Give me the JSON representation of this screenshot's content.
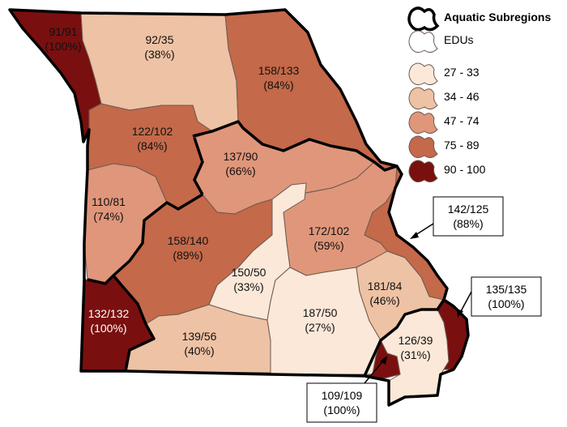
{
  "colors": {
    "class_27_33": "#fbe8d8",
    "class_34_46": "#eec2a4",
    "class_47_74": "#e0967a",
    "class_75_89": "#c4694a",
    "class_90_100": "#7a0f0f",
    "edu_border": "#6b5a52",
    "subregion_border": "#000000"
  },
  "legend": {
    "subregions_label": "Aquatic Subregions",
    "edus_label": "EDUs",
    "classes": [
      {
        "label": "27 - 33",
        "color": "#fbe8d8"
      },
      {
        "label": "34 - 46",
        "color": "#eec2a4"
      },
      {
        "label": "47 - 74",
        "color": "#e0967a"
      },
      {
        "label": "75 - 89",
        "color": "#c4694a"
      },
      {
        "label": "90 - 100",
        "color": "#7a0f0f"
      }
    ]
  },
  "regions": [
    {
      "id": "nw-corner",
      "ratio": "91/91",
      "percent": "(100%)",
      "color": "#7a0f0f"
    },
    {
      "id": "north-central",
      "ratio": "92/35",
      "percent": "(38%)",
      "color": "#eec2a4"
    },
    {
      "id": "northeast",
      "ratio": "158/133",
      "percent": "(84%)",
      "color": "#c4694a"
    },
    {
      "id": "grand-river",
      "ratio": "122/102",
      "percent": "(84%)",
      "color": "#c4694a"
    },
    {
      "id": "central",
      "ratio": "137/90",
      "percent": "(66%)",
      "color": "#e0967a"
    },
    {
      "id": "west-central",
      "ratio": "110/81",
      "percent": "(74%)",
      "color": "#e0967a"
    },
    {
      "id": "osage",
      "ratio": "158/140",
      "percent": "(89%)",
      "color": "#c4694a"
    },
    {
      "id": "meramec",
      "ratio": "172/102",
      "percent": "(59%)",
      "color": "#e0967a"
    },
    {
      "id": "gasconade",
      "ratio": "150/50",
      "percent": "(33%)",
      "color": "#fbe8d8"
    },
    {
      "id": "sw-corner",
      "ratio": "132/132",
      "percent": "(100%)",
      "color": "#7a0f0f"
    },
    {
      "id": "white-river",
      "ratio": "139/56",
      "percent": "(40%)",
      "color": "#eec2a4"
    },
    {
      "id": "current-river",
      "ratio": "187/50",
      "percent": "(27%)",
      "color": "#fbe8d8"
    },
    {
      "id": "st-francis",
      "ratio": "181/84",
      "percent": "(46%)",
      "color": "#eec2a4"
    },
    {
      "id": "bootheel",
      "ratio": "126/39",
      "percent": "(31%)",
      "color": "#fbe8d8"
    }
  ],
  "callouts": [
    {
      "id": "mississippi-east",
      "ratio": "142/125",
      "percent": "(88%)"
    },
    {
      "id": "se-river",
      "ratio": "135/135",
      "percent": "(100%)"
    },
    {
      "id": "south-bootheel",
      "ratio": "109/109",
      "percent": "(100%)"
    }
  ]
}
